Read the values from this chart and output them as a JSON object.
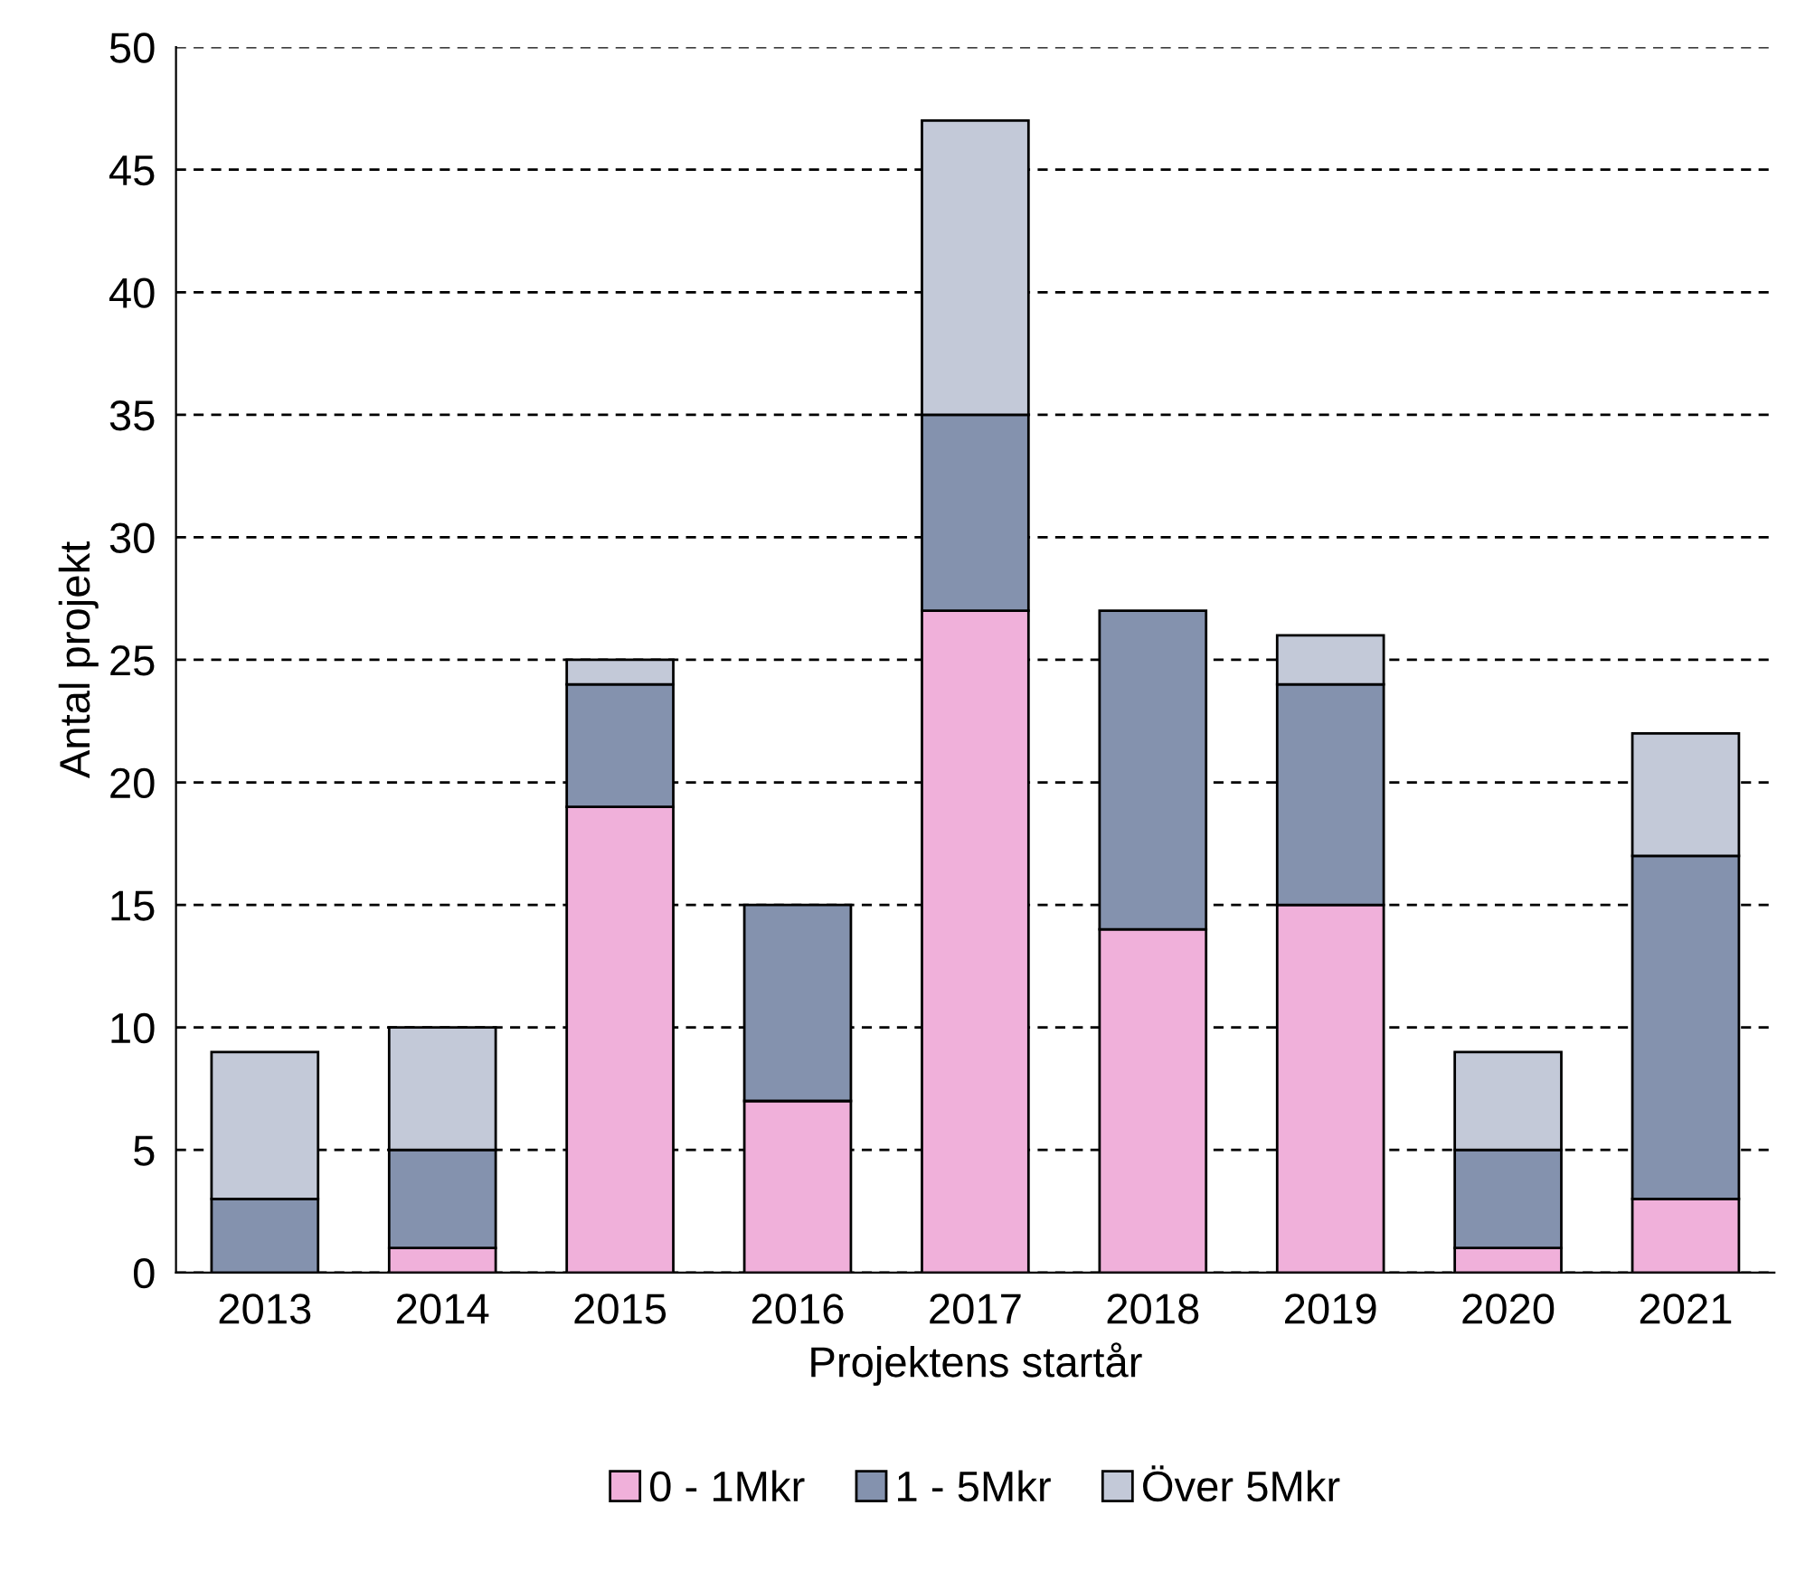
{
  "chart_data": {
    "type": "bar",
    "stacked": true,
    "xlabel": "Projektens startår",
    "ylabel": "Antal projekt",
    "categories": [
      "2013",
      "2014",
      "2015",
      "2016",
      "2017",
      "2018",
      "2019",
      "2020",
      "2021"
    ],
    "series": [
      {
        "name": "0 - 1Mkr",
        "color": "#f0b0da",
        "values": [
          null,
          1,
          19,
          7,
          27,
          14,
          15,
          1,
          3
        ]
      },
      {
        "name": "1 - 5Mkr",
        "color": "#8492ae",
        "values": [
          3,
          4,
          5,
          8,
          8,
          13,
          9,
          4,
          14
        ]
      },
      {
        "name": "Över 5Mkr",
        "color": "#c3c9d8",
        "values": [
          6,
          5,
          1,
          null,
          12,
          null,
          2,
          4,
          5
        ]
      }
    ],
    "ylim": [
      0,
      50
    ],
    "yticks": [
      0,
      5,
      10,
      15,
      20,
      25,
      30,
      35,
      40,
      45,
      50
    ],
    "grid": "y",
    "legend": "bottom"
  }
}
